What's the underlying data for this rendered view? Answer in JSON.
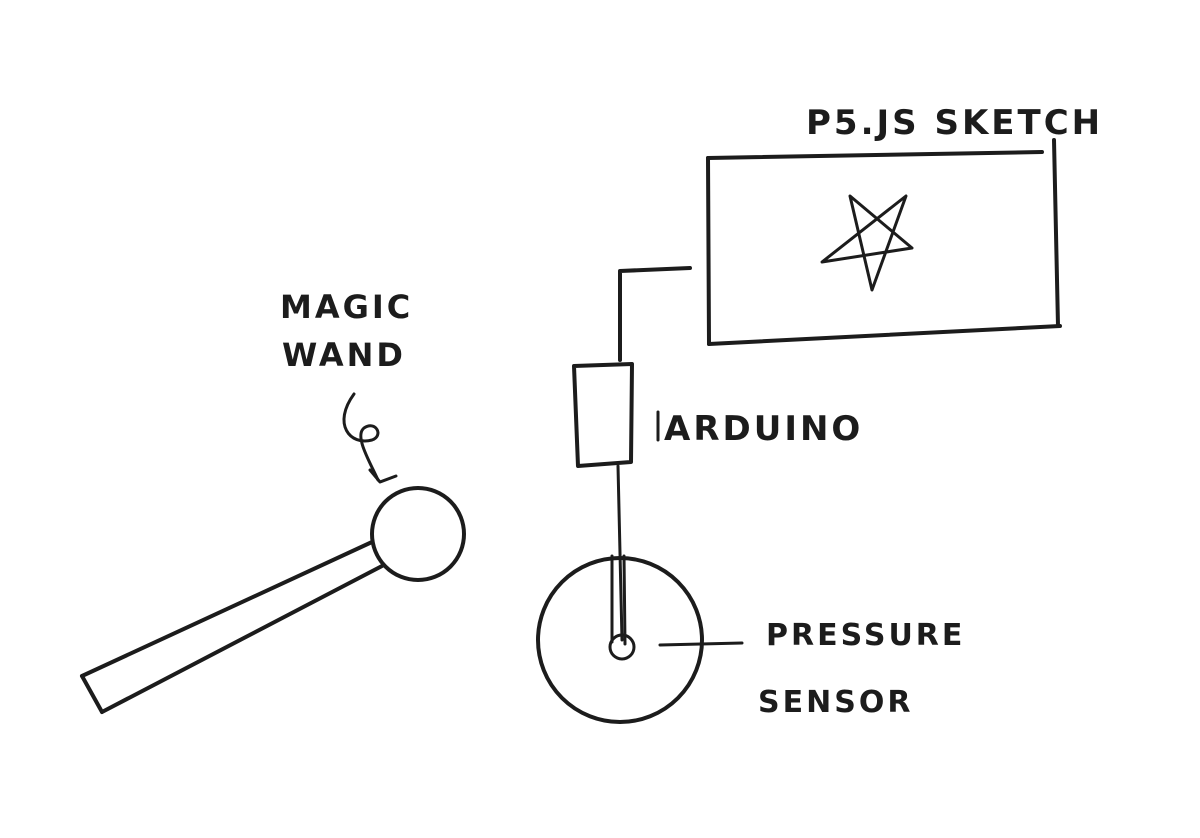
{
  "labels": {
    "sketch": "P5.JS SKETCH",
    "wand_line1": "MAGIC",
    "wand_line2": "WAND",
    "arduino": "ARDUINO",
    "sensor_line1": "PRESSURE",
    "sensor_line2": "SENSOR"
  },
  "colors": {
    "ink": "#1c1c1c",
    "paper": "#ffffff"
  }
}
